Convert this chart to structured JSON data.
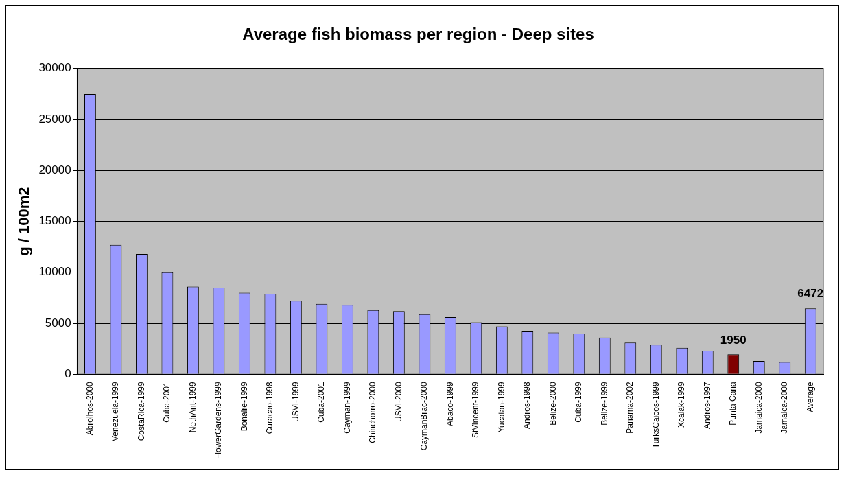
{
  "chart_data": {
    "type": "bar",
    "title": "Average fish biomass per region - Deep sites",
    "ylabel": "g / 100m2",
    "categories": [
      "Abrolhos-2000",
      "Venezuela-1999",
      "CostaRica-1999",
      "Cuba-2001",
      "NethAnt-1999",
      "FlowerGardens-1999",
      "Bonaire-1999",
      "Curacao-1998",
      "USVI-1999",
      "Cuba-2001",
      "Cayman-1999",
      "Chinchorro-2000",
      "USVI-2000",
      "CaymanBrac-2000",
      "Abaco-1999",
      "StVincent-1999",
      "Yucatan-1999",
      "Andros-1998",
      "Belize-2000",
      "Cuba-1999",
      "Belize-1999",
      "Panama-2002",
      "TurksCaicos-1999",
      "Xcalak-1999",
      "Andros-1997",
      "Punta Cana",
      "Jamaica-2000",
      "Jamaica-2000",
      "Average"
    ],
    "values": [
      27500,
      12700,
      11800,
      10000,
      8600,
      8500,
      8000,
      7900,
      7200,
      6900,
      6800,
      6300,
      6200,
      5900,
      5600,
      5100,
      4700,
      4200,
      4100,
      4000,
      3600,
      3100,
      2900,
      2600,
      2300,
      1950,
      1300,
      1200,
      6472
    ],
    "colors": [
      "#9999ff",
      "#9999ff",
      "#9999ff",
      "#9999ff",
      "#9999ff",
      "#9999ff",
      "#9999ff",
      "#9999ff",
      "#9999ff",
      "#9999ff",
      "#9999ff",
      "#9999ff",
      "#9999ff",
      "#9999ff",
      "#9999ff",
      "#9999ff",
      "#9999ff",
      "#9999ff",
      "#9999ff",
      "#9999ff",
      "#9999ff",
      "#9999ff",
      "#9999ff",
      "#9999ff",
      "#9999ff",
      "#800000",
      "#9999ff",
      "#9999ff",
      "#9999ff"
    ],
    "value_labels": [
      null,
      null,
      null,
      null,
      null,
      null,
      null,
      null,
      null,
      null,
      null,
      null,
      null,
      null,
      null,
      null,
      null,
      null,
      null,
      null,
      null,
      null,
      null,
      null,
      null,
      "1950",
      null,
      null,
      "6472"
    ],
    "ylim": [
      0,
      30000
    ],
    "yticks": [
      0,
      5000,
      10000,
      15000,
      20000,
      25000,
      30000
    ],
    "grid": "y",
    "legend": false
  }
}
